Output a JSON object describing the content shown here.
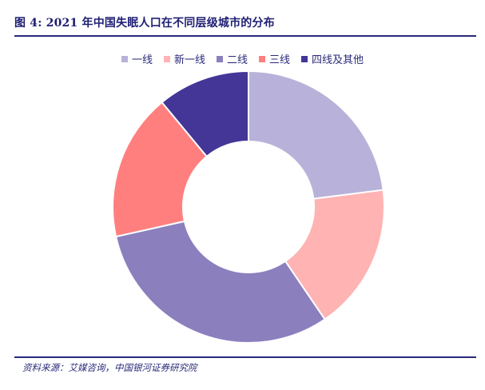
{
  "figure": {
    "title": "图 4:  2021 年中国失眠人口在不同层级城市的分布",
    "source": "资料来源：艾媒咨询，中国银河证券研究院"
  },
  "colors": {
    "title_rule": "#2a2a7a",
    "text": "#2a2a7a"
  },
  "chart_data": {
    "type": "pie",
    "donut": true,
    "categories": [
      "一线",
      "新一线",
      "二线",
      "三线",
      "四线及其他"
    ],
    "values": [
      23.0,
      17.5,
      31.0,
      17.5,
      11.0
    ],
    "colors": [
      "#b8b2da",
      "#ffb3b3",
      "#8b7fbe",
      "#ff7f7f",
      "#433697"
    ],
    "legend_position": "top",
    "start_angle": "12 o'clock, clockwise"
  }
}
